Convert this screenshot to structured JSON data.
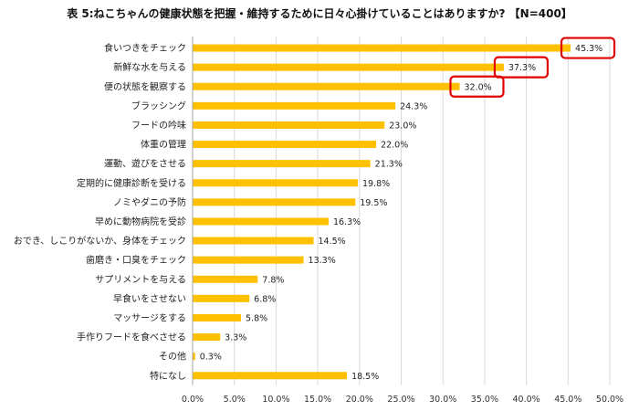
{
  "title": "表 5:ねこちゃんの健康状態を把握・維持するために日々心掛けていることはありますか? 【N=400】",
  "chart_data": {
    "type": "bar",
    "orientation": "horizontal",
    "title": "表 5:ねこちゃんの健康状態を把握・維持するために日々心掛けていることはありますか? 【N=400】",
    "categories": [
      "食いつきをチェック",
      "新鮮な水を与える",
      "便の状態を観察する",
      "ブラッシング",
      "フードの吟味",
      "体重の管理",
      "運動、遊びをさせる",
      "定期的に健康診断を受ける",
      "ノミやダニの予防",
      "早めに動物病院を受診",
      "おでき、しこりがないか、身体をチェック",
      "歯磨き・口臭をチェック",
      "サプリメントを与える",
      "早食いをさせない",
      "マッサージをする",
      "手作りフードを食べさせる",
      "その他",
      "特になし"
    ],
    "values": [
      45.3,
      37.3,
      32.0,
      24.3,
      23.0,
      22.0,
      21.3,
      19.8,
      19.5,
      16.3,
      14.5,
      13.3,
      7.8,
      6.8,
      5.8,
      3.3,
      0.3,
      18.5
    ],
    "value_labels": [
      "45.3%",
      "37.3%",
      "32.0%",
      "24.3%",
      "23.0%",
      "22.0%",
      "21.3%",
      "19.8%",
      "19.5%",
      "16.3%",
      "14.5%",
      "13.3%",
      "7.8%",
      "6.8%",
      "5.8%",
      "3.3%",
      "0.3%",
      "18.5%"
    ],
    "xlim": [
      0,
      50
    ],
    "xticks": [
      "0.0%",
      "5.0%",
      "10.0%",
      "15.0%",
      "20.0%",
      "25.0%",
      "30.0%",
      "35.0%",
      "40.0%",
      "45.0%",
      "50.0%"
    ],
    "highlighted_indices": [
      0,
      1,
      2
    ],
    "grid": true,
    "colors": {
      "bar": "#FFC000",
      "highlight_box": "#E00000",
      "grid": "#D9D9D9",
      "axis": "#A6A6A6"
    }
  }
}
